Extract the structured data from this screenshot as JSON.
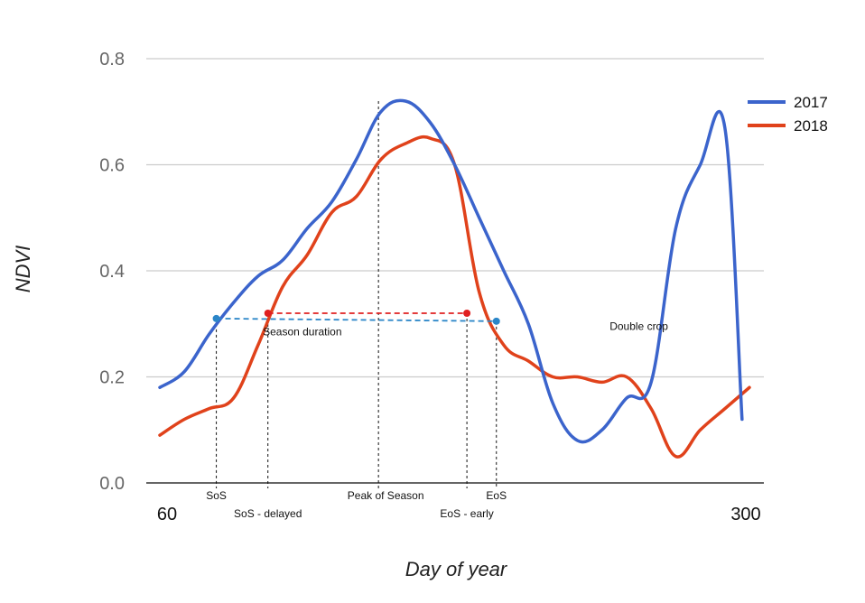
{
  "chart_data": {
    "type": "line",
    "title": "",
    "xlabel": "Day of year",
    "ylabel": "NDVI",
    "xlim": [
      60,
      300
    ],
    "ylim": [
      0.0,
      0.8
    ],
    "xtick_labels": [
      "60",
      "300"
    ],
    "yticks": [
      0.0,
      0.2,
      0.4,
      0.6,
      0.8
    ],
    "ytick_labels": [
      "0.0",
      "0.2",
      "0.4",
      "0.6",
      "0.8"
    ],
    "grid": "horizontal",
    "legend_position": "right",
    "series": [
      {
        "name": "2017",
        "color": "#3b64cc",
        "x": [
          60,
          70,
          80,
          90,
          100,
          110,
          120,
          130,
          140,
          150,
          160,
          170,
          180,
          190,
          200,
          210,
          220,
          230,
          240,
          250,
          260,
          270,
          280,
          290,
          297
        ],
        "values": [
          0.18,
          0.21,
          0.28,
          0.34,
          0.39,
          0.42,
          0.48,
          0.53,
          0.61,
          0.7,
          0.72,
          0.68,
          0.6,
          0.5,
          0.4,
          0.3,
          0.15,
          0.08,
          0.1,
          0.16,
          0.19,
          0.48,
          0.6,
          0.67,
          0.12
        ]
      },
      {
        "name": "2018",
        "color": "#e0421b",
        "x": [
          60,
          70,
          80,
          90,
          100,
          110,
          120,
          130,
          140,
          150,
          160,
          170,
          180,
          190,
          200,
          210,
          220,
          230,
          240,
          250,
          260,
          270,
          280,
          290,
          300
        ],
        "values": [
          0.09,
          0.12,
          0.14,
          0.16,
          0.26,
          0.37,
          0.43,
          0.51,
          0.54,
          0.61,
          0.64,
          0.65,
          0.6,
          0.36,
          0.26,
          0.23,
          0.2,
          0.2,
          0.19,
          0.2,
          0.14,
          0.05,
          0.1,
          0.14,
          0.18
        ]
      }
    ],
    "markers": [
      {
        "label": "SoS",
        "x": 83,
        "y": 0.31,
        "series": "2017"
      },
      {
        "label": "SoS - delayed",
        "x": 104,
        "y": 0.32,
        "series": "2018"
      },
      {
        "label": "Peak of Season",
        "x": 149,
        "y": 0.72,
        "series": "2017"
      },
      {
        "label": "EoS - early",
        "x": 185,
        "y": 0.32,
        "series": "2018"
      },
      {
        "label": "EoS",
        "x": 197,
        "y": 0.305,
        "series": "2017"
      }
    ],
    "duration_lines": [
      {
        "series": "2017",
        "x": [
          83,
          197
        ],
        "y": [
          0.31,
          0.305
        ]
      },
      {
        "series": "2018",
        "x": [
          104,
          185
        ],
        "y": [
          0.32,
          0.32
        ]
      }
    ],
    "annotations": [
      {
        "text": "Season duration",
        "x": 118,
        "y": 0.285
      },
      {
        "text": "Double crop",
        "x": 255,
        "y": 0.295
      }
    ],
    "colors": {
      "grid": "#cccccc",
      "axis": "#333333",
      "ytick": "#666666"
    }
  }
}
